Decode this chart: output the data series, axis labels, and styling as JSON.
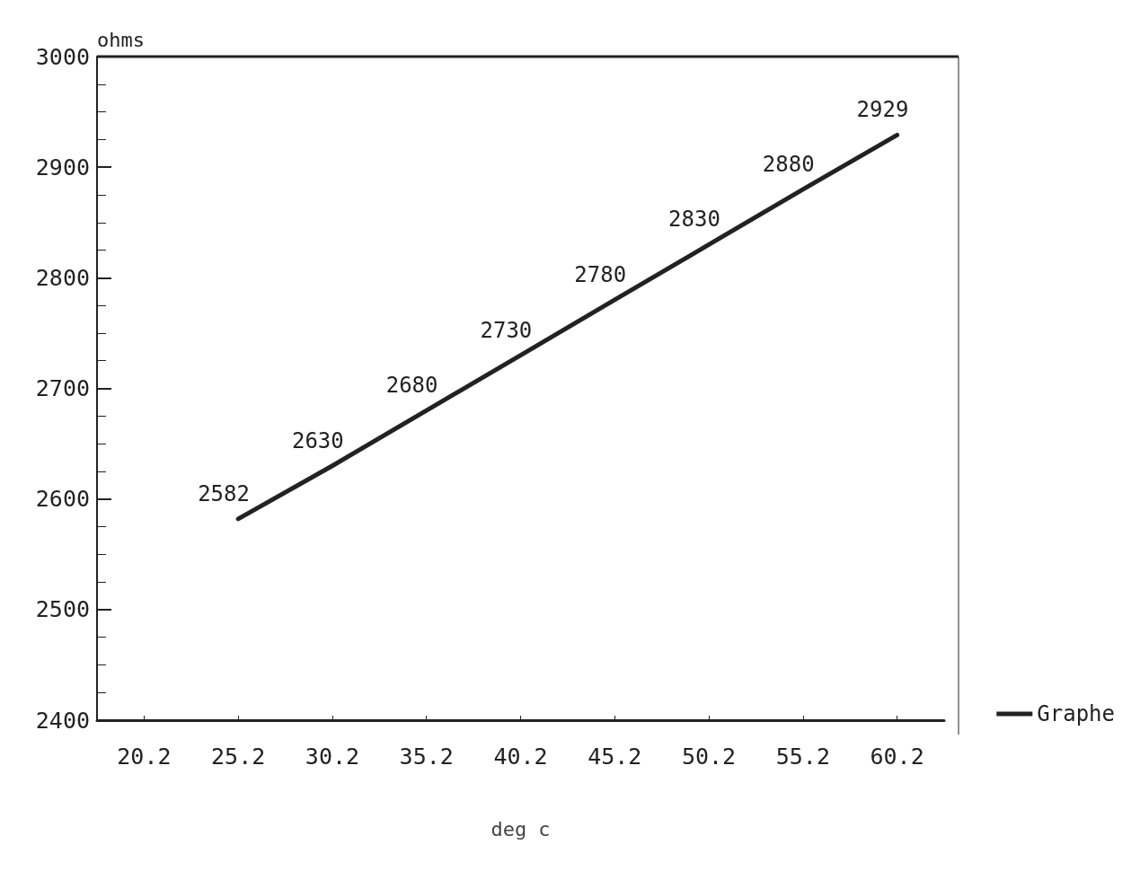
{
  "chart_data": {
    "type": "line",
    "xlabel": "deg c",
    "ylabel": "ohms",
    "categories": [
      "20.2",
      "25.2",
      "30.2",
      "35.2",
      "40.2",
      "45.2",
      "50.2",
      "55.2",
      "60.2"
    ],
    "series": [
      {
        "name": "Graphe",
        "color": "#222222",
        "values": [
          null,
          2582,
          2630,
          2680,
          2730,
          2780,
          2830,
          2880,
          2929
        ]
      }
    ],
    "ylim": [
      2400,
      3000
    ],
    "yticks": [
      2400,
      2500,
      2600,
      2700,
      2800,
      2900,
      3000
    ],
    "data_labels": true,
    "grid": false,
    "legend": "bottom right",
    "marker": "none",
    "line_style": "solid"
  }
}
